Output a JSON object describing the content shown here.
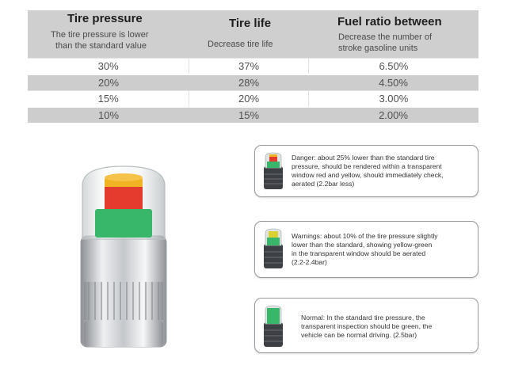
{
  "table": {
    "headers": [
      {
        "title": "Tire pressure",
        "subtitle_lines": [
          "The tire pressure is lower",
          "than the standard value"
        ]
      },
      {
        "title": "Tire life",
        "subtitle_lines": [
          "Decrease tire life"
        ]
      },
      {
        "title": "Fuel ratio between",
        "subtitle_lines": [
          "Decrease the number of",
          "stroke gasoline units"
        ]
      }
    ],
    "rows": [
      [
        "30%",
        "37%",
        "6.50%"
      ],
      [
        "20%",
        "28%",
        "4.50%"
      ],
      [
        "15%",
        "20%",
        "3.00%"
      ],
      [
        "10%",
        "15%",
        "2.00%"
      ]
    ]
  },
  "states": [
    {
      "lines": [
        "Danger: about 25% lower than the standard tire",
        "pressure, should be rendered within a transparent",
        "window red and yellow, should immediately check,",
        "aerated (2.2bar less)"
      ],
      "colors": [
        "#e33b2e",
        "#f0b322",
        "#38b76a"
      ]
    },
    {
      "lines": [
        "Warnings: about 10% of the tire pressure slightly",
        "lower than the standard, showing yellow-green",
        "in the transparent window should be aerated",
        "(2.2-2.4bar)"
      ],
      "colors": [
        "#d8d130",
        "#38b76a"
      ]
    },
    {
      "lines": [
        "Normal: In the standard tire pressure, the",
        "transparent inspection should be green, the",
        "vehicle can be normal driving. (2.5bar)"
      ],
      "colors": [
        "#38b76a"
      ]
    }
  ],
  "colors": {
    "red": "#e33b2e",
    "orange": "#f0b322",
    "green": "#38b76a",
    "header_gray": "#cfcfcf",
    "row_gray": "#cdcdcd"
  }
}
